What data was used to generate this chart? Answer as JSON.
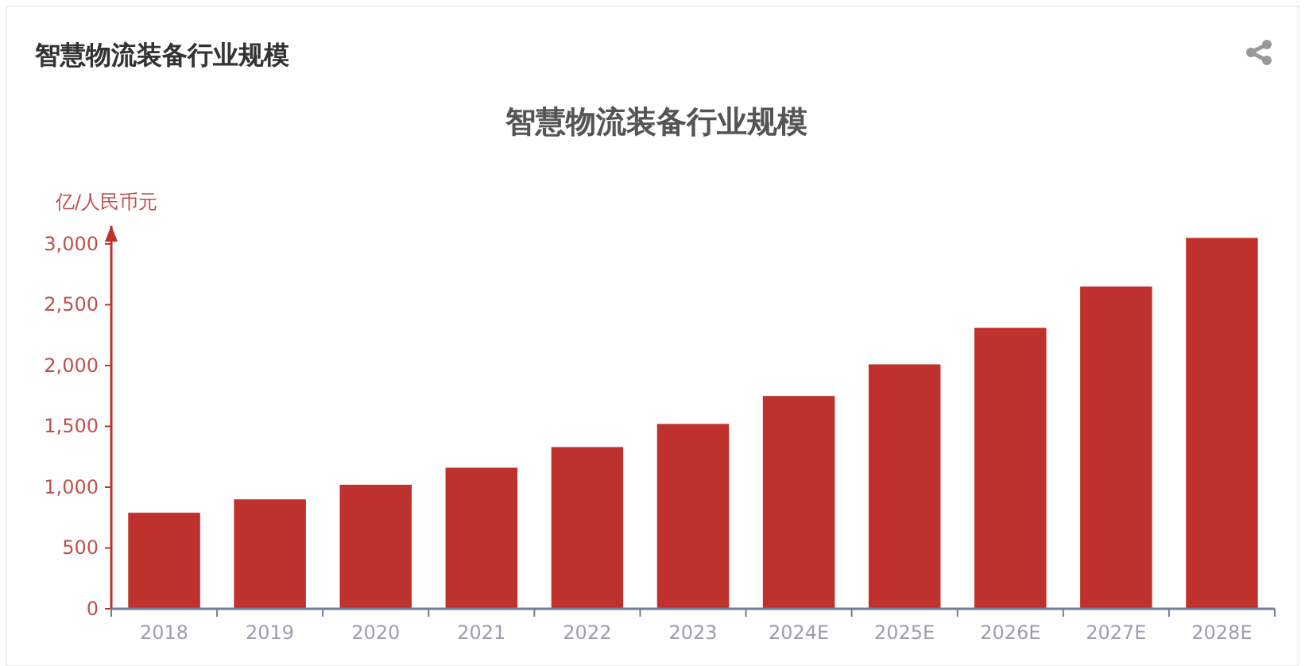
{
  "chart_data": {
    "type": "bar",
    "title": "智慧物流装备行业规模",
    "ylabel": "亿/人民币元",
    "annotations": [
      "智慧物流装备行业规模"
    ],
    "categories": [
      "2018",
      "2019",
      "2020",
      "2021",
      "2022",
      "2023",
      "2024E",
      "2025E",
      "2026E",
      "2027E",
      "2028E"
    ],
    "values": [
      790,
      900,
      1020,
      1160,
      1330,
      1520,
      1750,
      2010,
      2310,
      2650,
      3050
    ],
    "color": "#bf312c",
    "ylim": [
      0,
      3150
    ],
    "yticks": [
      0,
      500,
      {
        "value": 1000,
        "label": "1,000"
      },
      {
        "value": 1500,
        "label": "1,500"
      },
      {
        "value": 2000,
        "label": "2,000"
      },
      {
        "value": 2500,
        "label": "2,500"
      },
      {
        "value": 3000,
        "label": "3,000"
      }
    ],
    "grid": false
  }
}
